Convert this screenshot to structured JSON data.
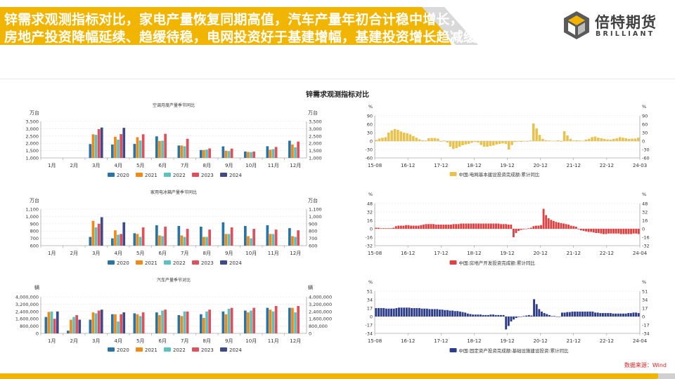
{
  "header": {
    "title_line1": "锌需求观测指标对比，家电产量恢复同期高值，汽车产量年初合计稳中增长，",
    "title_line2": "房地产投资降幅延续、趋缓待稳，电网投资好于基建增幅，基建投资增长趋减缓",
    "logo_cn": "倍特期货",
    "logo_en": "BRILLIANT"
  },
  "main_title": "锌需求观测指标对比",
  "source": "数据来源：Wind",
  "colors": {
    "2020": "#2874a6",
    "2021": "#ef8a17",
    "2022": "#5bc2c2",
    "2023": "#e0505a",
    "2024": "#3e4a8c",
    "grid_yellow": "#e8c24a",
    "house_red": "#e04040",
    "infra_navy": "#2e3d8a"
  },
  "chart_data": [
    {
      "type": "bar",
      "title": "空调月度产量季节同比",
      "unit_left": "万台",
      "unit_right": "万台",
      "categories": [
        "1月",
        "2月",
        "3月",
        "4月",
        "5月",
        "6月",
        "7月",
        "8月",
        "9月",
        "10月",
        "11月",
        "12月"
      ],
      "ylim": [
        1000,
        3500
      ],
      "yticks": [
        "1,000",
        "1,500",
        "2,000",
        "2,500",
        "3,000",
        "3,500"
      ],
      "series": [
        {
          "name": "2020",
          "values": [
            null,
            null,
            1950,
            1920,
            1960,
            2480,
            1850,
            1540,
            1790,
            1440,
            1800,
            2180
          ]
        },
        {
          "name": "2021",
          "values": [
            null,
            null,
            2620,
            2450,
            2420,
            2160,
            1850,
            1540,
            1490,
            1410,
            1560,
            1920
          ]
        },
        {
          "name": "2022",
          "values": [
            null,
            null,
            2580,
            2250,
            2190,
            2180,
            1800,
            1570,
            1470,
            1400,
            1600,
            1730
          ]
        },
        {
          "name": "2023",
          "values": [
            null,
            null,
            2970,
            2630,
            2620,
            2650,
            2310,
            1650,
            1640,
            1440,
            1750,
            2120
          ]
        },
        {
          "name": "2024",
          "values": [
            null,
            null,
            3080,
            3060,
            null,
            null,
            null,
            null,
            null,
            null,
            null,
            null
          ]
        }
      ]
    },
    {
      "type": "bar",
      "title": "家用电冰箱产量季节同比",
      "unit_left": "万台",
      "unit_right": "万台",
      "categories": [
        "1月",
        "2月",
        "3月",
        "4月",
        "5月",
        "6月",
        "7月",
        "8月",
        "9月",
        "10月",
        "11月",
        "12月"
      ],
      "ylim": [
        600,
        1100
      ],
      "yticks": [
        "600",
        "700",
        "800",
        "900",
        "1,000",
        "1,100"
      ],
      "series": [
        {
          "name": "2020",
          "values": [
            null,
            null,
            720,
            700,
            770,
            880,
            870,
            860,
            920,
            870,
            880,
            840
          ]
        },
        {
          "name": "2021",
          "values": [
            null,
            null,
            940,
            810,
            760,
            740,
            740,
            720,
            760,
            730,
            760,
            730
          ]
        },
        {
          "name": "2022",
          "values": [
            null,
            null,
            850,
            750,
            720,
            730,
            720,
            720,
            760,
            700,
            760,
            720
          ]
        },
        {
          "name": "2023",
          "values": [
            null,
            null,
            900,
            760,
            850,
            860,
            830,
            820,
            850,
            830,
            820,
            810
          ]
        },
        {
          "name": "2024",
          "values": [
            null,
            null,
            990,
            920,
            null,
            null,
            null,
            null,
            null,
            null,
            null,
            null
          ]
        }
      ]
    },
    {
      "type": "bar",
      "title": "汽车产量季节对比",
      "unit_left": "辆",
      "unit_right": "辆",
      "categories": [
        "1月",
        "2月",
        "3月",
        "4月",
        "5月",
        "6月",
        "7月",
        "8月",
        "9月",
        "10月",
        "11月",
        "12月"
      ],
      "ylim": [
        0,
        4000000
      ],
      "yticks": [
        "0",
        "800,000",
        "1,600,000",
        "2,400,000",
        "3,200,000",
        "4,000,000"
      ],
      "series": [
        {
          "name": "2020",
          "values": [
            1800000,
            300000,
            1500000,
            2100000,
            2200000,
            2300000,
            2000000,
            2100000,
            2400000,
            2500000,
            2800000,
            2800000
          ]
        },
        {
          "name": "2021",
          "values": [
            2350000,
            1500000,
            2300000,
            2100000,
            2100000,
            2000000,
            1900000,
            1700000,
            2100000,
            2300000,
            2600000,
            2800000
          ]
        },
        {
          "name": "2022",
          "values": [
            2400000,
            1800000,
            2200000,
            1300000,
            1900000,
            2500000,
            2400000,
            2400000,
            2700000,
            2500000,
            2400000,
            2300000
          ]
        },
        {
          "name": "2023",
          "values": [
            1600000,
            2000000,
            2500000,
            2100000,
            2300000,
            2600000,
            2400000,
            2600000,
            2800000,
            2800000,
            3000000,
            3000000
          ]
        },
        {
          "name": "2024",
          "values": [
            2400000,
            1500000,
            2600000,
            2300000,
            null,
            null,
            null,
            null,
            null,
            null,
            null,
            null
          ]
        }
      ]
    },
    {
      "type": "bar",
      "legend": "中国:电网基本建设投资完成额:累计同比",
      "unit": "%",
      "ylim": [
        -60,
        90
      ],
      "yticks": [
        "-60",
        "-30",
        "0",
        "30",
        "60",
        "90"
      ],
      "xticks": [
        "15-08",
        "16-12",
        "17-12",
        "18-12",
        "19-12",
        "20-12",
        "21-12",
        "22-12",
        "24-03"
      ],
      "color_key": "grid_yellow",
      "values": [
        4,
        9,
        12,
        14,
        30,
        38,
        43,
        40,
        34,
        30,
        28,
        24,
        18,
        12,
        6,
        3,
        2,
        10,
        11,
        11,
        9,
        -2,
        2,
        -5,
        -20,
        -28,
        -25,
        -20,
        -15,
        -12,
        -10,
        -6,
        -3,
        -5,
        -14,
        -20,
        -20,
        -18,
        -16,
        -12,
        -10,
        -8,
        -10,
        -30,
        -14,
        -3,
        -2,
        -3,
        -1,
        -2,
        2,
        63,
        45,
        22,
        8,
        3,
        2,
        1,
        1,
        3,
        -2,
        35,
        20,
        8,
        2,
        3,
        2,
        1,
        5,
        8,
        14,
        16,
        12,
        10,
        8,
        6,
        5,
        8,
        10,
        14,
        12,
        10,
        8,
        9,
        9,
        12
      ]
    },
    {
      "type": "bar",
      "legend": "中国:房地产开发投资完成额:累计同比",
      "unit": "%",
      "ylim": [
        -32,
        48
      ],
      "yticks": [
        "-32",
        "-16",
        "0",
        "16",
        "32",
        "48"
      ],
      "xticks": [
        "15-08",
        "16-12",
        "17-12",
        "18-12",
        "19-12",
        "20-12",
        "21-12",
        "22-12",
        "24-04"
      ],
      "color_key": "house_red",
      "values": [
        2,
        2,
        1,
        1,
        1,
        1,
        1,
        2,
        5,
        6,
        6,
        6,
        7,
        7,
        6,
        6,
        6,
        6,
        7,
        8,
        9,
        9,
        9,
        9,
        8,
        8,
        8,
        8,
        8,
        8,
        8,
        9,
        9,
        9,
        10,
        10,
        10,
        10,
        10,
        10,
        10,
        10,
        10,
        10,
        10,
        10,
        10,
        10,
        10,
        10,
        9,
        9,
        9,
        8,
        8,
        -16,
        -8,
        -4,
        -2,
        -1,
        0,
        1,
        2,
        5,
        6,
        6,
        7,
        38,
        26,
        20,
        17,
        15,
        13,
        12,
        11,
        10,
        9,
        8,
        6,
        5,
        4,
        -1,
        -3,
        -4,
        -5,
        -6,
        -6,
        -7,
        -8,
        -8,
        -9,
        -10,
        -10,
        -9,
        -9,
        -9,
        -9,
        -9,
        -10,
        -10,
        -10,
        -10,
        -10,
        -9,
        -9,
        -10
      ]
    },
    {
      "type": "bar",
      "legend": "中国:固定资产投资完成额:基础设施建设投资:累计同比",
      "unit": "%",
      "ylim": [
        -34,
        51
      ],
      "yticks": [
        "-34",
        "-17",
        "0",
        "17",
        "34",
        "51"
      ],
      "xticks": [
        "15-08",
        "16-12",
        "17-12",
        "18-12",
        "19-12",
        "20-12",
        "21-12",
        "22-12",
        "24-04"
      ],
      "color_key": "infra_navy",
      "values": [
        17,
        17,
        17,
        17,
        16,
        16,
        16,
        16,
        17,
        18,
        18,
        18,
        18,
        18,
        17,
        17,
        17,
        17,
        16,
        16,
        16,
        15,
        15,
        15,
        15,
        14,
        14,
        13,
        13,
        12,
        12,
        11,
        11,
        10,
        9,
        8,
        6,
        5,
        4,
        4,
        4,
        4,
        3,
        3,
        3,
        4,
        4,
        3,
        3,
        3,
        3,
        -26,
        -19,
        -10,
        -6,
        -3,
        -1,
        0,
        1,
        2,
        3,
        2,
        35,
        25,
        15,
        10,
        7,
        5,
        3,
        1,
        1,
        0,
        0,
        8,
        8,
        9,
        9,
        10,
        10,
        10,
        10,
        10,
        10,
        10,
        10,
        10,
        8,
        8,
        7,
        7,
        7,
        7,
        7,
        6,
        6,
        6,
        6,
        6,
        6,
        7,
        7,
        8,
        8,
        7
      ]
    }
  ]
}
